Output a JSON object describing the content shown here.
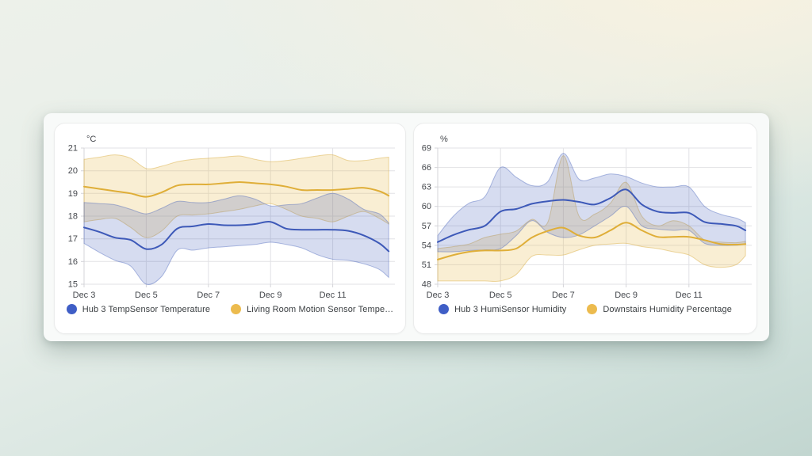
{
  "page": {
    "background_colors": {
      "top_left": "#edf1ea",
      "top_right": "#f9f2df",
      "bottom_left": "#dcebe6",
      "bottom_right": "#c2d6d0"
    },
    "panel_bg": "#f8faf9",
    "card_bg": "#ffffff"
  },
  "colors": {
    "blue_line": "#3d59b8",
    "blue_dot": "#3f5ec6",
    "blue_fill": "rgba(70,97,186,0.22)",
    "blue_edge": "rgba(70,97,186,0.42)",
    "yellow_line": "#dfae38",
    "yellow_dot": "#ecbb4e",
    "yellow_fill": "rgba(230,184,70,0.24)",
    "yellow_edge": "rgba(216,168,55,0.45)",
    "grid": "#e2e2e5",
    "axis_line": "#d4d4d8",
    "axis_text": "#45484d",
    "legend_text": "#3c4043"
  },
  "chart_data": [
    {
      "type": "area",
      "id": "temperature",
      "unit": "°C",
      "ylim": [
        15,
        21
      ],
      "yticks": [
        15,
        16,
        17,
        18,
        19,
        20,
        21
      ],
      "xlim": [
        3,
        13
      ],
      "xticks": [
        3,
        5,
        7,
        9,
        11
      ],
      "xtick_labels": [
        "Dec 3",
        "Dec 5",
        "Dec 7",
        "Dec 9",
        "Dec 11"
      ],
      "x": [
        3,
        3.5,
        4,
        4.5,
        5,
        5.5,
        6,
        6.5,
        7,
        7.5,
        8,
        8.5,
        9,
        9.5,
        10,
        10.5,
        11,
        11.5,
        12,
        12.5,
        12.8
      ],
      "series": [
        {
          "name": "Living Room Motion Sensor Tempe…",
          "color_key": "yellow",
          "mean": [
            19.3,
            19.2,
            19.1,
            19.0,
            18.85,
            19.05,
            19.35,
            19.4,
            19.4,
            19.45,
            19.5,
            19.45,
            19.4,
            19.3,
            19.15,
            19.15,
            19.15,
            19.2,
            19.25,
            19.1,
            18.9
          ],
          "upper": [
            20.5,
            20.6,
            20.7,
            20.55,
            20.1,
            20.2,
            20.4,
            20.5,
            20.55,
            20.6,
            20.65,
            20.5,
            20.4,
            20.45,
            20.55,
            20.65,
            20.7,
            20.45,
            20.45,
            20.55,
            20.6
          ],
          "lower": [
            17.75,
            17.85,
            17.9,
            17.5,
            17.05,
            17.35,
            18.0,
            18.05,
            18.1,
            18.2,
            18.3,
            18.45,
            18.55,
            18.3,
            18.0,
            17.9,
            17.75,
            18.0,
            18.2,
            17.9,
            17.65
          ]
        },
        {
          "name": "Hub 3 TempSensor Temperature",
          "color_key": "blue",
          "mean": [
            17.5,
            17.3,
            17.05,
            16.95,
            16.55,
            16.75,
            17.45,
            17.55,
            17.65,
            17.6,
            17.6,
            17.65,
            17.75,
            17.45,
            17.4,
            17.4,
            17.4,
            17.35,
            17.15,
            16.8,
            16.45
          ],
          "upper": [
            18.6,
            18.55,
            18.5,
            18.3,
            18.1,
            18.35,
            18.65,
            18.6,
            18.6,
            18.75,
            18.9,
            18.75,
            18.45,
            18.5,
            18.55,
            18.8,
            19.0,
            18.75,
            18.3,
            18.1,
            17.7
          ],
          "lower": [
            16.8,
            16.4,
            16.05,
            15.8,
            15.0,
            15.35,
            16.5,
            16.5,
            16.6,
            16.65,
            16.7,
            16.75,
            16.85,
            16.75,
            16.6,
            16.3,
            16.1,
            16.05,
            15.9,
            15.65,
            15.3
          ]
        }
      ],
      "legend": [
        "Hub 3 TempSensor Temperature",
        "Living Room Motion Sensor Tempe…"
      ]
    },
    {
      "type": "area",
      "id": "humidity",
      "unit": "%",
      "ylim": [
        48,
        69
      ],
      "yticks": [
        48,
        51,
        54,
        57,
        60,
        63,
        66,
        69
      ],
      "xlim": [
        3,
        13
      ],
      "xticks": [
        3,
        5,
        7,
        9,
        11
      ],
      "xtick_labels": [
        "Dec 3",
        "Dec 5",
        "Dec 7",
        "Dec 9",
        "Dec 11"
      ],
      "x": [
        3,
        3.5,
        4,
        4.5,
        5,
        5.5,
        6,
        6.5,
        7,
        7.5,
        8,
        8.5,
        9,
        9.5,
        10,
        10.5,
        11,
        11.5,
        12,
        12.5,
        12.8
      ],
      "series": [
        {
          "name": "Downstairs Humidity Percentage",
          "color_key": "yellow",
          "mean": [
            51.8,
            52.5,
            53.0,
            53.2,
            53.2,
            53.5,
            55.2,
            56.2,
            56.7,
            55.5,
            55.2,
            56.3,
            57.5,
            56.3,
            55.3,
            55.3,
            55.3,
            54.8,
            54.2,
            54.1,
            54.2
          ],
          "upper": [
            53.5,
            53.8,
            54.2,
            55.2,
            55.7,
            56.2,
            58.0,
            57.5,
            67.8,
            58.5,
            58.8,
            60.5,
            63.7,
            58.5,
            57.0,
            57.8,
            57.0,
            54.8,
            54.5,
            54.4,
            54.6
          ],
          "lower": [
            48.5,
            48.5,
            48.5,
            48.5,
            48.5,
            49.5,
            52.3,
            52.5,
            52.5,
            53.3,
            54.0,
            54.2,
            54.3,
            53.8,
            53.5,
            53.0,
            52.5,
            51.0,
            50.6,
            51.0,
            52.4
          ]
        },
        {
          "name": "Hub 3 HumiSensor Humidity",
          "color_key": "blue",
          "mean": [
            54.5,
            55.6,
            56.4,
            57.0,
            59.2,
            59.6,
            60.4,
            60.8,
            61.0,
            60.7,
            60.3,
            61.3,
            62.6,
            60.3,
            59.2,
            59.0,
            59.0,
            57.6,
            57.3,
            57.0,
            56.3
          ],
          "upper": [
            55.5,
            58.5,
            60.5,
            61.5,
            66.0,
            64.5,
            63.2,
            63.8,
            68.2,
            64.2,
            64.4,
            65.0,
            64.6,
            63.6,
            63.0,
            63.0,
            63.0,
            60.0,
            58.8,
            58.2,
            57.5
          ],
          "lower": [
            53.0,
            53.0,
            53.2,
            53.3,
            53.5,
            55.5,
            57.8,
            56.0,
            55.2,
            55.6,
            57.0,
            58.5,
            60.0,
            57.0,
            56.5,
            56.3,
            56.3,
            54.3,
            54.0,
            54.0,
            54.2
          ]
        }
      ],
      "legend": [
        "Hub 3 HumiSensor Humidity",
        "Downstairs Humidity Percentage"
      ]
    }
  ]
}
